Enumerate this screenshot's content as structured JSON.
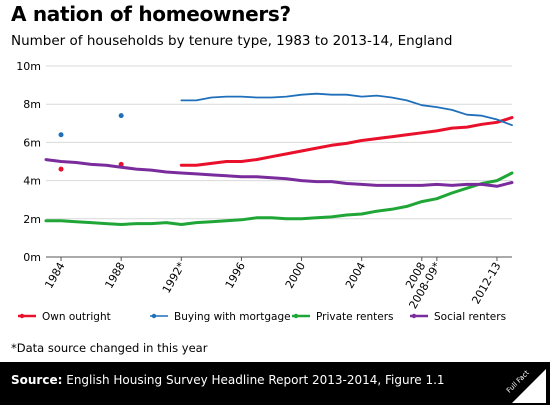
{
  "header": {
    "title": "A nation of homeowners?",
    "subtitle": "Number of households by tenure type, 1983 to 2013-14, England"
  },
  "note": "*Data source changed in this year",
  "footer": {
    "source_label": "Source:",
    "source_text": "English Housing Survey Headline Report 2013-2014, Figure 1.1",
    "logo_text": "Full Fact"
  },
  "chart_data": {
    "type": "line",
    "title": "A nation of homeowners?",
    "subtitle": "Number of households by tenure type, 1983 to 2013-14, England",
    "xlabel": "",
    "ylabel": "",
    "ylim": [
      0,
      10
    ],
    "y_unit": "m",
    "grid": true,
    "legend_placement": "bottom",
    "y_ticks": [
      "0m",
      "2m",
      "4m",
      "6m",
      "8m",
      "10m"
    ],
    "x_tick_labels": [
      "1984",
      "1988",
      "1992*",
      "1996",
      "2000",
      "2004",
      "2008",
      "2008-09*",
      "2012-13"
    ],
    "x_categories": [
      "1983",
      "1984",
      "1985",
      "1986",
      "1987",
      "1988",
      "1989",
      "1990",
      "1991",
      "1992",
      "1993",
      "1994",
      "1995",
      "1996",
      "1997",
      "1998",
      "1999",
      "2000",
      "2001",
      "2002",
      "2003",
      "2004",
      "2005",
      "2006",
      "2007",
      "2008",
      "2008-09",
      "2009-10",
      "2010-11",
      "2011-12",
      "2012-13",
      "2013-14"
    ],
    "series": [
      {
        "name": "Own outright",
        "color": "#e8102a",
        "style": "line",
        "points_only": [
          [
            1,
            4.6
          ],
          [
            5,
            4.85
          ]
        ],
        "values": [
          null,
          null,
          null,
          null,
          null,
          null,
          null,
          null,
          null,
          4.8,
          4.8,
          4.9,
          5.0,
          5.0,
          5.1,
          5.25,
          5.4,
          5.55,
          5.7,
          5.85,
          5.95,
          6.1,
          6.2,
          6.3,
          6.4,
          6.5,
          6.6,
          6.75,
          6.8,
          6.95,
          7.05,
          7.3
        ]
      },
      {
        "name": "Buying with mortgage",
        "color": "#1f6fba",
        "style": "line-thin",
        "points_only": [
          [
            1,
            6.4
          ],
          [
            5,
            7.4
          ]
        ],
        "values": [
          null,
          null,
          null,
          null,
          null,
          null,
          null,
          null,
          null,
          8.2,
          8.2,
          8.35,
          8.4,
          8.4,
          8.35,
          8.35,
          8.4,
          8.5,
          8.55,
          8.5,
          8.5,
          8.4,
          8.45,
          8.35,
          8.2,
          7.95,
          7.85,
          7.7,
          7.45,
          7.4,
          7.2,
          6.9
        ]
      },
      {
        "name": "Private renters",
        "color": "#1fa637",
        "style": "line",
        "points_only": [],
        "values": [
          1.9,
          1.9,
          1.85,
          1.8,
          1.75,
          1.7,
          1.75,
          1.75,
          1.8,
          1.7,
          1.8,
          1.85,
          1.9,
          1.95,
          2.05,
          2.05,
          2.0,
          2.0,
          2.05,
          2.1,
          2.2,
          2.25,
          2.4,
          2.5,
          2.65,
          2.9,
          3.05,
          3.35,
          3.6,
          3.85,
          4.0,
          4.4
        ]
      },
      {
        "name": "Social renters",
        "color": "#7a2c9c",
        "style": "line",
        "points_only": [],
        "values": [
          5.1,
          5.0,
          4.95,
          4.85,
          4.8,
          4.7,
          4.6,
          4.55,
          4.45,
          4.4,
          4.35,
          4.3,
          4.25,
          4.2,
          4.2,
          4.15,
          4.1,
          4.0,
          3.95,
          3.95,
          3.85,
          3.8,
          3.75,
          3.75,
          3.75,
          3.75,
          3.8,
          3.75,
          3.8,
          3.8,
          3.7,
          3.9
        ]
      }
    ]
  }
}
